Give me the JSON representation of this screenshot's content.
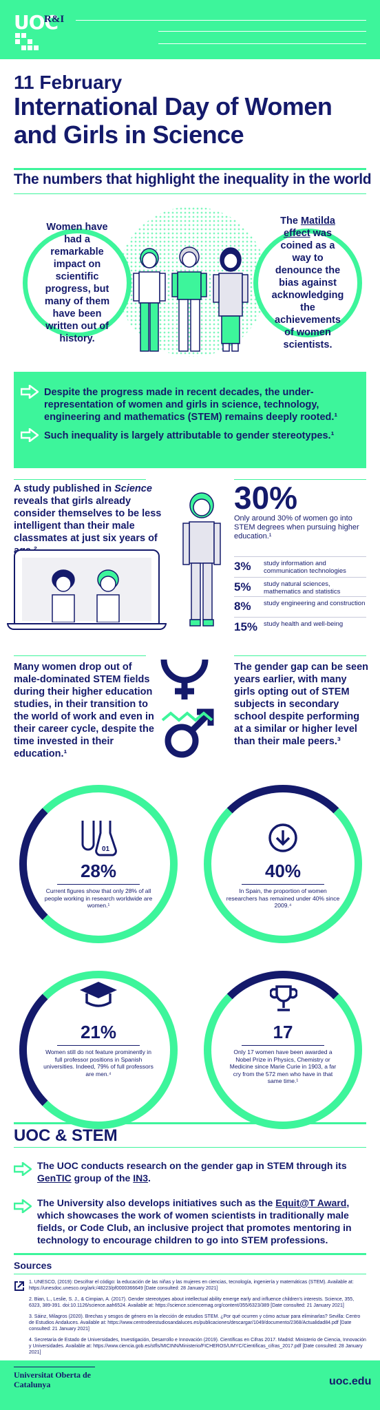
{
  "header": {
    "logo": "UOC",
    "logo_suffix": "R&I"
  },
  "title": {
    "date": "11 February",
    "main": "International Day of Women and Girls in Science"
  },
  "subtitle": "The numbers that highlight the inequality in the world",
  "bubbles": {
    "left": "Women have had a remarkable impact on scientific progress, but many of them have been written out of history.",
    "right_pre": "The ",
    "right_link": "Matilda effect",
    "right_post": " was coined as a way to denounce the bias against acknowledging the achievements of women scientists."
  },
  "band": {
    "item1": "Despite the progress made in recent decades, the under-representation of women and girls in science, technology, engineering and mathematics (STEM) remains deeply rooted.¹",
    "item2": "Such inequality is largely attributable to gender stereotypes.¹"
  },
  "study": {
    "pre": "A study published in ",
    "italic": "Science",
    "post": " reveals that girls already consider themselves to be less intelligent than their male classmates at just six years of age.²"
  },
  "stem_degrees": {
    "big": "30%",
    "text": "Only around 30% of women go into STEM degrees when pursuing higher education.¹",
    "rows": [
      {
        "value": "3%",
        "label": "study information and communication technologies"
      },
      {
        "value": "5%",
        "label": "study natural sciences, mathematics and statistics"
      },
      {
        "value": "8%",
        "label": "study engineering and construction"
      },
      {
        "value": "15%",
        "label": "study health and well-being"
      }
    ]
  },
  "dropout": "Many women drop out of male-dominated STEM fields during their higher education studies, in their transition to the world of work and even in their career cycle, despite the time invested in their education.¹",
  "gap": "The gender gap can be seen years earlier, with many girls opting out of STEM subjects in secondary school despite performing at a similar or higher level than their male peers.³",
  "rings": [
    {
      "big": "28%",
      "text": "Current figures show that only 28% of all people working in research worldwide are women.¹"
    },
    {
      "big": "40%",
      "text": "In Spain, the proportion of women researchers has remained under 40% since 2009.⁴"
    },
    {
      "big": "21%",
      "text": "Women still do not feature prominently in full professor positions in Spanish universities. Indeed, 79% of full professors are men.⁴"
    },
    {
      "big": "17",
      "text": "Only 17 women have been awarded a Nobel Prize in Physics, Chemistry or Medicine since Marie Curie in 1903, a far cry from the 572 men who have in that same time.¹"
    }
  ],
  "ring_icon_label": "01",
  "uoc": {
    "title": "UOC & STEM",
    "item1_pre": "The UOC conducts research on the gender gap in STEM through its ",
    "item1_link1": "GenTIC",
    "item1_mid": " group of the ",
    "item1_link2": "IN3",
    "item1_post": ".",
    "item2_pre": "The University also develops initiatives such as the ",
    "item2_link": "Equit@T Award",
    "item2_post": ", which showcases the work of women scientists in traditionally male fields, or Code Club, an inclusive project that promotes mentoring in technology to encourage children to go into STEM professions."
  },
  "sources": {
    "title": "Sources",
    "items": [
      "1. UNESCO, (2019): Descifrar el código: la educación de las niñas y las mujeres en ciencias, tecnología, ingeniería y matemáticas (STEM). Available at: https://unesdoc.unesco.org/ark:/48223/pf0000366649 [Date consulted: 28 January 2021]",
      "2. Bian, L., Leslie, S. J., & Cimpian, A. (2017). Gender stereotypes about intellectual ability emerge early and influence children's interests. Science, 355, 6323, 389-391. doi:10.1126/science.aah6524. Available at: https://science.sciencemag.org/content/355/6323/389 [Date consulted: 21 January 2021]",
      "3. Sáinz, Milagros (2020). Brechas y sesgos de género en la elección de estudios STEM. ¿Por qué ocurren y cómo actuar para eliminarlas? Sevilla: Centro de Estudios Andaluces. Available at: https://www.centrodeestudiosandaluces.es/publicaciones/descargar/1049/documento/2368/Actualidad84.pdf [Date consulted: 21 January 2021]",
      "4. Secretaría de Estado de Universidades, Investigación, Desarrollo e Innovación (2019). Científicas en Cifras 2017. Madrid: Ministerio de Ciencia, Innovación y Universidades. Available at: https://www.ciencia.gob.es/stfls/MICINN/Ministerio/FICHEROS/UMYC/Cientificas_cifras_2017.pdf [Date consulted: 28 January 2021]"
    ]
  },
  "footer": {
    "left": "Universitat Oberta de Catalunya",
    "right": "uoc.edu"
  },
  "colors": {
    "green": "#3df59b",
    "navy": "#141a6b"
  }
}
